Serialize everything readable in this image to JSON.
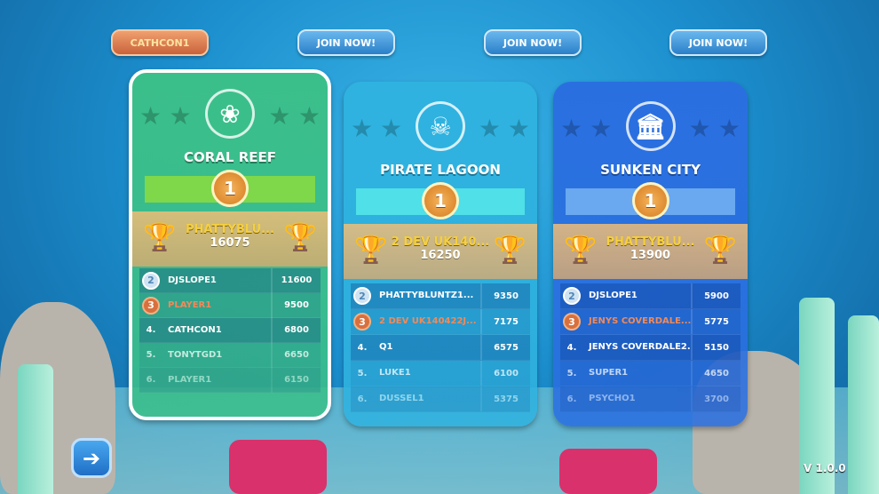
{
  "top_buttons": [
    {
      "label": "CATHCON1",
      "active": true
    },
    {
      "label": "JOIN NOW!",
      "active": false
    },
    {
      "label": "JOIN NOW!",
      "active": false
    },
    {
      "label": "JOIN NOW!",
      "active": false
    }
  ],
  "cards": [
    {
      "title": "CORAL REEF",
      "icon": "coral-icon",
      "color": "#3bbf8a",
      "ribbon": "#7ed84a",
      "selected": true,
      "medal": "1",
      "winner": {
        "name": "PHATTYBLU...",
        "score": "16075"
      },
      "rows": [
        {
          "rank": "2",
          "name": "DJSLOPE1",
          "score": "11600"
        },
        {
          "rank": "3",
          "name": "PLAYER1",
          "score": "9500"
        },
        {
          "rank": "4.",
          "name": "CATHCON1",
          "score": "6800"
        },
        {
          "rank": "5.",
          "name": "TONYTGD1",
          "score": "6650"
        },
        {
          "rank": "6.",
          "name": "PLAYER1",
          "score": "6150"
        }
      ]
    },
    {
      "title": "PIRATE LAGOON",
      "icon": "skull-crossbones-icon",
      "color": "#2fb2df",
      "ribbon": "#4fe0e8",
      "selected": false,
      "medal": "1",
      "winner": {
        "name": "2 DEV UK140...",
        "score": "16250"
      },
      "rows": [
        {
          "rank": "2",
          "name": "PHATTYBLUNTZ1...",
          "score": "9350"
        },
        {
          "rank": "3",
          "name": "2 DEV UK140422J...",
          "score": "7175"
        },
        {
          "rank": "4.",
          "name": "Q1",
          "score": "6575"
        },
        {
          "rank": "5.",
          "name": "LUKE1",
          "score": "6100"
        },
        {
          "rank": "6.",
          "name": "DUSSEL1",
          "score": "5375"
        }
      ]
    },
    {
      "title": "SUNKEN CITY",
      "icon": "column-icon",
      "color": "#2a6fe0",
      "ribbon": "#6aa8f0",
      "selected": false,
      "medal": "1",
      "winner": {
        "name": "PHATTYBLU...",
        "score": "13900"
      },
      "rows": [
        {
          "rank": "2",
          "name": "DJSLOPE1",
          "score": "5900"
        },
        {
          "rank": "3",
          "name": "JENYS COVERDALE...",
          "score": "5775"
        },
        {
          "rank": "4.",
          "name": "JENYS COVERDALE2...",
          "score": "5150"
        },
        {
          "rank": "5.",
          "name": "SUPER1",
          "score": "4650"
        },
        {
          "rank": "6.",
          "name": "PSYCHO1",
          "score": "3700"
        }
      ]
    }
  ],
  "back_icon": "arrow-left-icon",
  "version": "V 1.0.0"
}
